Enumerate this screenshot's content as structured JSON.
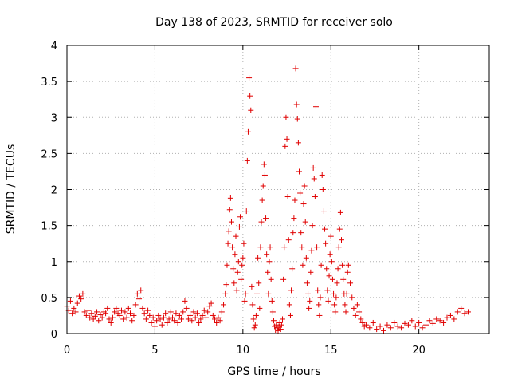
{
  "chart_data": {
    "type": "scatter",
    "title": "Day 138 of 2023, SRMTID for receiver solo",
    "xlabel": "GPS time / hours",
    "ylabel": "SRMTID / TECUs",
    "xlim": [
      0,
      24
    ],
    "ylim": [
      0,
      4
    ],
    "xticks": [
      0,
      5,
      10,
      15,
      20
    ],
    "yticks": [
      0,
      0.5,
      1,
      1.5,
      2,
      2.5,
      3,
      3.5,
      4
    ],
    "xtick_labels": [
      "0",
      "5",
      "10",
      "15",
      "20"
    ],
    "ytick_labels": [
      "0",
      "0.5",
      "1",
      "1.5",
      "2",
      "2.5",
      "3",
      "3.5",
      "4"
    ],
    "grid": true,
    "marker": "+",
    "color": "#e00000",
    "series": [
      {
        "name": "solo",
        "points": [
          [
            0.0,
            0.38
          ],
          [
            0.1,
            0.32
          ],
          [
            0.2,
            0.45
          ],
          [
            0.3,
            0.28
          ],
          [
            0.4,
            0.35
          ],
          [
            0.5,
            0.3
          ],
          [
            0.6,
            0.42
          ],
          [
            0.7,
            0.52
          ],
          [
            0.8,
            0.48
          ],
          [
            0.9,
            0.55
          ],
          [
            1.0,
            0.3
          ],
          [
            1.1,
            0.25
          ],
          [
            1.2,
            0.32
          ],
          [
            1.3,
            0.22
          ],
          [
            1.4,
            0.28
          ],
          [
            1.5,
            0.2
          ],
          [
            1.6,
            0.24
          ],
          [
            1.7,
            0.3
          ],
          [
            1.8,
            0.18
          ],
          [
            1.9,
            0.26
          ],
          [
            2.0,
            0.22
          ],
          [
            2.1,
            0.3
          ],
          [
            2.2,
            0.28
          ],
          [
            2.3,
            0.35
          ],
          [
            2.4,
            0.2
          ],
          [
            2.5,
            0.15
          ],
          [
            2.6,
            0.22
          ],
          [
            2.7,
            0.3
          ],
          [
            2.8,
            0.35
          ],
          [
            2.9,
            0.28
          ],
          [
            3.0,
            0.25
          ],
          [
            3.1,
            0.32
          ],
          [
            3.2,
            0.2
          ],
          [
            3.3,
            0.3
          ],
          [
            3.4,
            0.22
          ],
          [
            3.5,
            0.35
          ],
          [
            3.6,
            0.28
          ],
          [
            3.7,
            0.18
          ],
          [
            3.8,
            0.25
          ],
          [
            3.9,
            0.4
          ],
          [
            4.0,
            0.55
          ],
          [
            4.1,
            0.48
          ],
          [
            4.2,
            0.6
          ],
          [
            4.3,
            0.35
          ],
          [
            4.4,
            0.28
          ],
          [
            4.5,
            0.2
          ],
          [
            4.6,
            0.32
          ],
          [
            4.7,
            0.25
          ],
          [
            4.8,
            0.15
          ],
          [
            4.9,
            0.22
          ],
          [
            5.0,
            0.1
          ],
          [
            5.1,
            0.18
          ],
          [
            5.2,
            0.25
          ],
          [
            5.3,
            0.2
          ],
          [
            5.4,
            0.12
          ],
          [
            5.5,
            0.22
          ],
          [
            5.6,
            0.28
          ],
          [
            5.7,
            0.15
          ],
          [
            5.8,
            0.2
          ],
          [
            5.9,
            0.3
          ],
          [
            6.0,
            0.22
          ],
          [
            6.1,
            0.18
          ],
          [
            6.2,
            0.28
          ],
          [
            6.3,
            0.15
          ],
          [
            6.4,
            0.25
          ],
          [
            6.5,
            0.2
          ],
          [
            6.6,
            0.3
          ],
          [
            6.7,
            0.45
          ],
          [
            6.8,
            0.35
          ],
          [
            6.9,
            0.2
          ],
          [
            7.0,
            0.25
          ],
          [
            7.1,
            0.18
          ],
          [
            7.2,
            0.3
          ],
          [
            7.3,
            0.22
          ],
          [
            7.4,
            0.28
          ],
          [
            7.5,
            0.15
          ],
          [
            7.6,
            0.2
          ],
          [
            7.7,
            0.25
          ],
          [
            7.8,
            0.32
          ],
          [
            7.9,
            0.22
          ],
          [
            8.0,
            0.3
          ],
          [
            8.1,
            0.38
          ],
          [
            8.2,
            0.42
          ],
          [
            8.3,
            0.25
          ],
          [
            8.4,
            0.2
          ],
          [
            8.5,
            0.15
          ],
          [
            8.6,
            0.22
          ],
          [
            8.7,
            0.18
          ],
          [
            8.8,
            0.3
          ],
          [
            8.9,
            0.4
          ],
          [
            9.0,
            0.55
          ],
          [
            9.05,
            0.68
          ],
          [
            9.1,
            0.95
          ],
          [
            9.15,
            1.25
          ],
          [
            9.2,
            1.42
          ],
          [
            9.25,
            1.72
          ],
          [
            9.3,
            1.88
          ],
          [
            9.35,
            1.55
          ],
          [
            9.4,
            1.2
          ],
          [
            9.45,
            0.9
          ],
          [
            9.5,
            0.7
          ],
          [
            9.55,
            1.1
          ],
          [
            9.6,
            1.35
          ],
          [
            9.65,
            0.6
          ],
          [
            9.7,
            0.85
          ],
          [
            9.75,
            1.0
          ],
          [
            9.8,
            1.48
          ],
          [
            9.85,
            1.62
          ],
          [
            9.9,
            0.75
          ],
          [
            9.95,
            0.95
          ],
          [
            10.0,
            1.05
          ],
          [
            10.05,
            1.25
          ],
          [
            10.1,
            0.45
          ],
          [
            10.15,
            0.55
          ],
          [
            10.2,
            1.7
          ],
          [
            10.25,
            2.4
          ],
          [
            10.3,
            2.8
          ],
          [
            10.35,
            3.55
          ],
          [
            10.4,
            3.3
          ],
          [
            10.45,
            3.1
          ],
          [
            10.5,
            0.65
          ],
          [
            10.55,
            0.4
          ],
          [
            10.6,
            0.2
          ],
          [
            10.65,
            0.08
          ],
          [
            10.7,
            0.12
          ],
          [
            10.75,
            0.25
          ],
          [
            10.8,
            0.55
          ],
          [
            10.85,
            1.05
          ],
          [
            10.9,
            0.7
          ],
          [
            10.95,
            0.35
          ],
          [
            11.0,
            1.2
          ],
          [
            11.05,
            1.55
          ],
          [
            11.1,
            1.85
          ],
          [
            11.15,
            2.05
          ],
          [
            11.2,
            2.35
          ],
          [
            11.25,
            2.2
          ],
          [
            11.3,
            1.6
          ],
          [
            11.35,
            1.1
          ],
          [
            11.4,
            0.85
          ],
          [
            11.45,
            0.55
          ],
          [
            11.5,
            1.0
          ],
          [
            11.55,
            1.2
          ],
          [
            11.6,
            0.75
          ],
          [
            11.65,
            0.45
          ],
          [
            11.7,
            0.3
          ],
          [
            11.75,
            0.18
          ],
          [
            11.8,
            0.1
          ],
          [
            11.85,
            0.05
          ],
          [
            11.9,
            0.12
          ],
          [
            11.95,
            0.08
          ],
          [
            12.0,
            0.04
          ],
          [
            12.05,
            0.1
          ],
          [
            12.1,
            0.15
          ],
          [
            12.15,
            0.06
          ],
          [
            12.2,
            0.12
          ],
          [
            12.25,
            0.2
          ],
          [
            12.3,
            0.75
          ],
          [
            12.35,
            1.2
          ],
          [
            12.4,
            2.6
          ],
          [
            12.45,
            3.0
          ],
          [
            12.5,
            2.7
          ],
          [
            12.55,
            1.9
          ],
          [
            12.6,
            1.3
          ],
          [
            12.65,
            0.4
          ],
          [
            12.7,
            0.25
          ],
          [
            12.75,
            0.6
          ],
          [
            12.8,
            0.9
          ],
          [
            12.85,
            1.4
          ],
          [
            12.9,
            1.6
          ],
          [
            12.95,
            1.85
          ],
          [
            13.0,
            3.68
          ],
          [
            13.05,
            3.18
          ],
          [
            13.1,
            2.98
          ],
          [
            13.15,
            2.65
          ],
          [
            13.2,
            2.25
          ],
          [
            13.25,
            1.95
          ],
          [
            13.3,
            1.4
          ],
          [
            13.35,
            1.2
          ],
          [
            13.4,
            0.95
          ],
          [
            13.45,
            1.8
          ],
          [
            13.5,
            2.05
          ],
          [
            13.55,
            1.55
          ],
          [
            13.6,
            1.05
          ],
          [
            13.65,
            0.7
          ],
          [
            13.7,
            0.55
          ],
          [
            13.75,
            0.35
          ],
          [
            13.8,
            0.45
          ],
          [
            13.85,
            0.85
          ],
          [
            13.9,
            1.15
          ],
          [
            13.95,
            1.5
          ],
          [
            14.0,
            2.3
          ],
          [
            14.05,
            2.15
          ],
          [
            14.1,
            1.9
          ],
          [
            14.15,
            3.15
          ],
          [
            14.2,
            1.2
          ],
          [
            14.25,
            0.6
          ],
          [
            14.3,
            0.4
          ],
          [
            14.35,
            0.25
          ],
          [
            14.4,
            0.5
          ],
          [
            14.45,
            0.95
          ],
          [
            14.5,
            2.2
          ],
          [
            14.55,
            2.0
          ],
          [
            14.6,
            1.7
          ],
          [
            14.65,
            1.45
          ],
          [
            14.7,
            1.25
          ],
          [
            14.75,
            0.9
          ],
          [
            14.8,
            0.6
          ],
          [
            14.85,
            0.45
          ],
          [
            14.9,
            0.8
          ],
          [
            14.95,
            1.1
          ],
          [
            15.0,
            1.35
          ],
          [
            15.05,
            1.0
          ],
          [
            15.1,
            0.75
          ],
          [
            15.15,
            0.55
          ],
          [
            15.2,
            0.4
          ],
          [
            15.25,
            0.3
          ],
          [
            15.3,
            0.5
          ],
          [
            15.35,
            0.7
          ],
          [
            15.4,
            0.9
          ],
          [
            15.45,
            1.2
          ],
          [
            15.5,
            1.45
          ],
          [
            15.55,
            1.68
          ],
          [
            15.6,
            1.3
          ],
          [
            15.65,
            0.95
          ],
          [
            15.7,
            0.75
          ],
          [
            15.75,
            0.55
          ],
          [
            15.8,
            0.4
          ],
          [
            15.85,
            0.3
          ],
          [
            15.9,
            0.55
          ],
          [
            15.95,
            0.85
          ],
          [
            16.0,
            0.95
          ],
          [
            16.1,
            0.7
          ],
          [
            16.2,
            0.5
          ],
          [
            16.3,
            0.35
          ],
          [
            16.4,
            0.25
          ],
          [
            16.5,
            0.4
          ],
          [
            16.6,
            0.3
          ],
          [
            16.7,
            0.2
          ],
          [
            16.8,
            0.15
          ],
          [
            16.9,
            0.1
          ],
          [
            17.0,
            0.12
          ],
          [
            17.2,
            0.08
          ],
          [
            17.4,
            0.15
          ],
          [
            17.6,
            0.06
          ],
          [
            17.8,
            0.1
          ],
          [
            18.0,
            0.04
          ],
          [
            18.2,
            0.12
          ],
          [
            18.4,
            0.08
          ],
          [
            18.6,
            0.15
          ],
          [
            18.8,
            0.1
          ],
          [
            19.0,
            0.08
          ],
          [
            19.2,
            0.14
          ],
          [
            19.4,
            0.12
          ],
          [
            19.6,
            0.18
          ],
          [
            19.8,
            0.1
          ],
          [
            20.0,
            0.15
          ],
          [
            20.2,
            0.08
          ],
          [
            20.4,
            0.12
          ],
          [
            20.6,
            0.18
          ],
          [
            20.8,
            0.14
          ],
          [
            21.0,
            0.2
          ],
          [
            21.2,
            0.18
          ],
          [
            21.4,
            0.15
          ],
          [
            21.6,
            0.22
          ],
          [
            21.8,
            0.25
          ],
          [
            22.0,
            0.2
          ],
          [
            22.2,
            0.3
          ],
          [
            22.4,
            0.35
          ],
          [
            22.6,
            0.28
          ],
          [
            22.8,
            0.3
          ]
        ]
      }
    ]
  }
}
